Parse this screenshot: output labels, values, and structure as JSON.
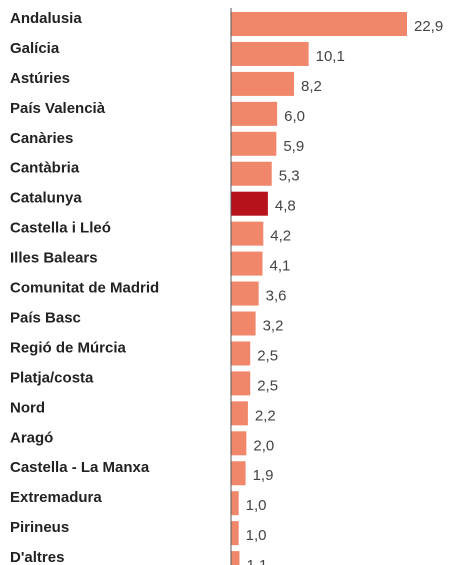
{
  "chart_data": {
    "type": "bar",
    "orientation": "horizontal",
    "categories": [
      "Andalusia",
      "Galícia",
      "Astúries",
      "País Valencià",
      "Canàries",
      "Cantàbria",
      "Catalunya",
      "Castella i Lleó",
      "Illes Balears",
      "Comunitat de Madrid",
      "País Basc",
      "Regió de Múrcia",
      "Platja/costa",
      "Nord",
      "Aragó",
      "Castella - La Manxa",
      "Extremadura",
      "Pirineus",
      "D'altres"
    ],
    "values": [
      22.9,
      10.1,
      8.2,
      6.0,
      5.9,
      5.3,
      4.8,
      4.2,
      4.1,
      3.6,
      3.2,
      2.5,
      2.5,
      2.2,
      2.0,
      1.9,
      1.0,
      1.0,
      1.1
    ],
    "value_labels": [
      "22,9",
      "10,1",
      "8,2",
      "6,0",
      "5,9",
      "5,3",
      "4,8",
      "4,2",
      "4,1",
      "3,6",
      "3,2",
      "2,5",
      "2,5",
      "2,2",
      "2,0",
      "1,9",
      "1,0",
      "1,0",
      "1,1"
    ],
    "colors": [
      "#f0876a",
      "#f0876a",
      "#f0876a",
      "#f0876a",
      "#f0876a",
      "#f0876a",
      "#b5121b",
      "#f0876a",
      "#f0876a",
      "#f0876a",
      "#f0876a",
      "#f0876a",
      "#f0876a",
      "#f0876a",
      "#f0876a",
      "#f0876a",
      "#f0876a",
      "#f0876a",
      "#f0876a"
    ]
  }
}
